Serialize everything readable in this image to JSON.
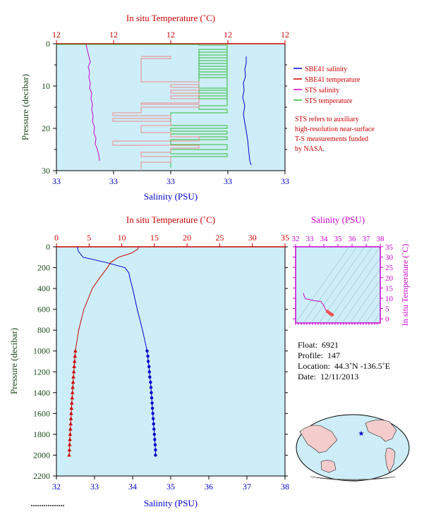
{
  "chart_data": [
    {
      "type": "line",
      "panel": "surface",
      "title": "",
      "top_axis_label": "In situ Temperature (˚C)",
      "top_ticks": [
        "12",
        "12",
        "12",
        "12",
        "12"
      ],
      "xlabel": "Salinity (PSU)",
      "bottom_ticks": [
        "33",
        "33",
        "33",
        "33",
        "33"
      ],
      "ylabel": "Pressure (decibar)",
      "y_ticks": [
        "0",
        "10",
        "20",
        "30"
      ],
      "ylim": [
        30,
        0
      ],
      "legend": [
        {
          "name": "SBE41 salinity",
          "color": "#0000cc"
        },
        {
          "name": "SBE41 temperature",
          "color": "#cc0000"
        },
        {
          "name": "STS salinity",
          "color": "#cc00cc"
        },
        {
          "name": "STS temperature",
          "color": "#33bb33"
        }
      ],
      "note": [
        "STS refers to auxiliary",
        "high-resolution near-surface",
        "T-S measurements funded",
        "by NASA."
      ]
    },
    {
      "type": "line",
      "panel": "profile",
      "top_axis_label": "In situ Temperature (˚C)",
      "top_ticks": [
        "0",
        "5",
        "10",
        "15",
        "20",
        "25",
        "30",
        "35"
      ],
      "xlabel": "Salinity (PSU)",
      "bottom_ticks": [
        "32",
        "33",
        "34",
        "35",
        "36",
        "37",
        "38"
      ],
      "ylabel": "Pressure (decibar)",
      "y_ticks": [
        "0",
        "200",
        "400",
        "600",
        "800",
        "1000",
        "1200",
        "1400",
        "1600",
        "1800",
        "2000",
        "2200"
      ],
      "xlim_salinity": [
        32,
        38
      ],
      "xlim_temperature": [
        0,
        35
      ],
      "ylim": [
        2200,
        0
      ],
      "series": [
        {
          "name": "salinity",
          "color": "#0000cc",
          "pressure": [
            0,
            40,
            100,
            150,
            200,
            250,
            300,
            400,
            600,
            800,
            1000
          ],
          "salinity": [
            32.55,
            32.57,
            32.7,
            33.3,
            33.8,
            33.9,
            33.93,
            34.0,
            34.12,
            34.26,
            34.38
          ]
        },
        {
          "name": "temperature",
          "color": "#cc0000",
          "pressure": [
            0,
            20,
            60,
            100,
            150,
            200,
            300,
            400,
            600,
            800,
            1000
          ],
          "temperature": [
            12.6,
            12.5,
            11.5,
            9.5,
            8.3,
            7.8,
            6.6,
            5.5,
            4.2,
            3.4,
            2.9
          ]
        },
        {
          "name": "salinity-deep-samples",
          "color": "#0000cc",
          "marker": "dot",
          "pressure": [
            1000,
            1050,
            1100,
            1150,
            1200,
            1250,
            1300,
            1350,
            1400,
            1450,
            1500,
            1550,
            1600,
            1650,
            1700,
            1750,
            1800,
            1850,
            1900,
            1950,
            2000
          ],
          "salinity": [
            34.38,
            34.4,
            34.41,
            34.43,
            34.44,
            34.45,
            34.47,
            34.48,
            34.49,
            34.5,
            34.51,
            34.52,
            34.53,
            34.54,
            34.55,
            34.56,
            34.57,
            34.58,
            34.59,
            34.6,
            34.6
          ]
        },
        {
          "name": "temperature-deep-samples",
          "color": "#cc0000",
          "marker": "triangle",
          "pressure": [
            1000,
            1050,
            1100,
            1150,
            1200,
            1250,
            1300,
            1350,
            1400,
            1450,
            1500,
            1550,
            1600,
            1650,
            1700,
            1750,
            1800,
            1850,
            1900,
            1950,
            2000
          ],
          "temperature": [
            2.9,
            2.84,
            2.78,
            2.72,
            2.66,
            2.6,
            2.55,
            2.5,
            2.45,
            2.4,
            2.35,
            2.3,
            2.26,
            2.22,
            2.18,
            2.14,
            2.1,
            2.06,
            2.02,
            1.99,
            1.95
          ]
        }
      ]
    },
    {
      "type": "scatter",
      "panel": "ts-diagram",
      "top_axis_label": "Salinity (PSU)",
      "top_ticks": [
        "32",
        "33",
        "34",
        "35",
        "36",
        "37",
        "38"
      ],
      "ylabel": "In situ Temperature (˚C)",
      "y_ticks": [
        "0",
        "5",
        "10",
        "15",
        "20",
        "25",
        "30",
        "35"
      ],
      "xlim": [
        32,
        38
      ],
      "ylim": [
        -2,
        35
      ],
      "series": [
        {
          "name": "ts-curve",
          "color": "#cc00cc",
          "salinity": [
            32.55,
            32.6,
            32.7,
            33.3,
            33.8,
            34.0,
            34.12,
            34.26,
            34.38,
            34.45,
            34.5,
            34.55,
            34.6
          ],
          "temperature": [
            12.6,
            11.2,
            9.8,
            8.9,
            8.4,
            6.5,
            4.5,
            3.6,
            2.9,
            2.5,
            2.3,
            2.1,
            1.95
          ]
        }
      ]
    }
  ],
  "float_info": {
    "float_label": "Float:",
    "float_value": "6921",
    "profile_label": "Profile:",
    "profile_value": "147",
    "location_label": "Location:",
    "location_value": "44.3˚N  -136.5˚E",
    "date_label": "Date:",
    "date_value": "12/11/2013"
  },
  "colors": {
    "panel_bg": "#cdeef8",
    "salinity": "#0000cc",
    "temperature": "#cc0000",
    "sts_salinity": "#cc00cc",
    "sts_temperature": "#33bb33",
    "ts_axis": "#cc00cc",
    "pressure_axis": "#1a4a1a"
  }
}
